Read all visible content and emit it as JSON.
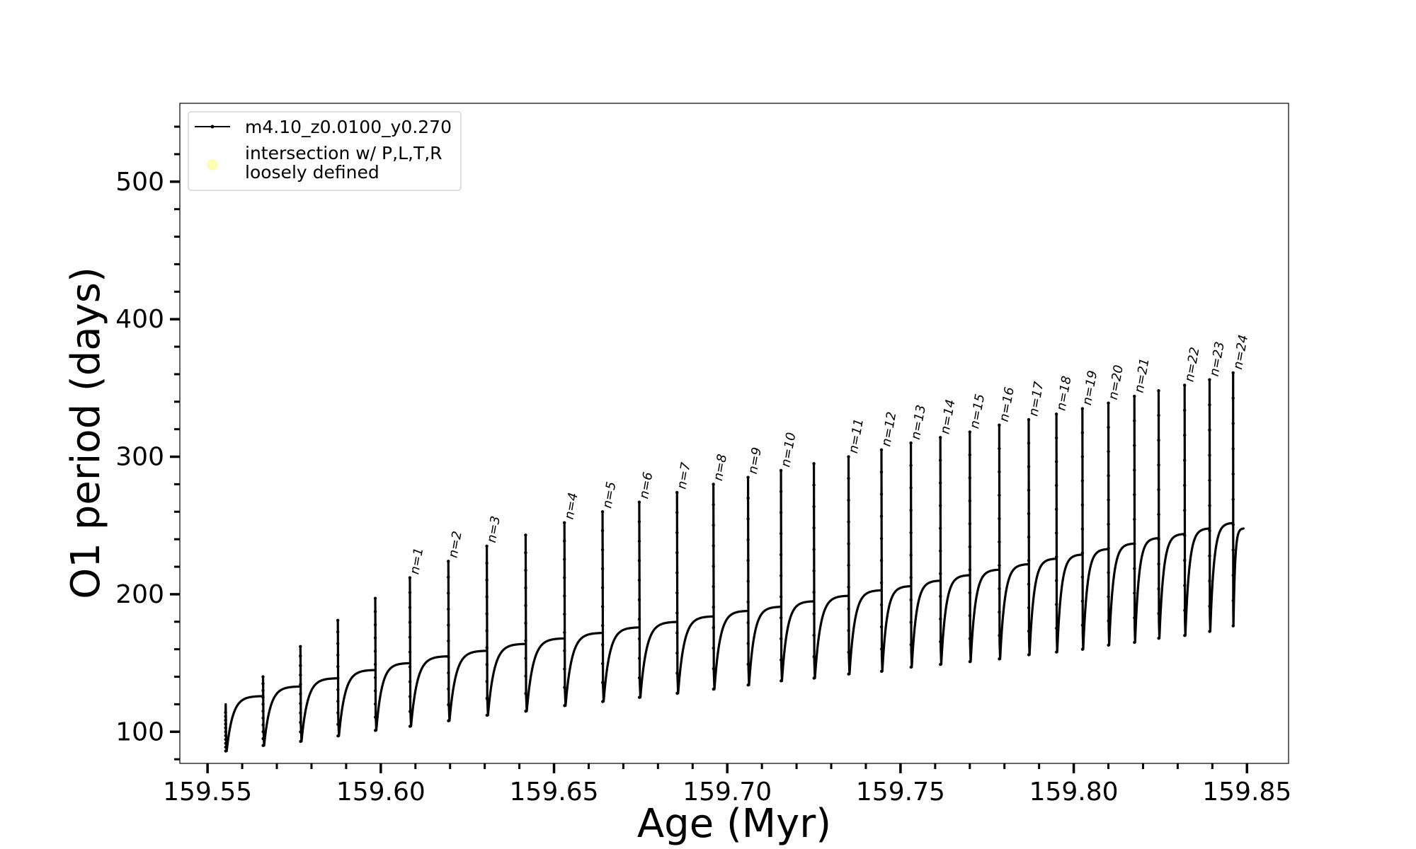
{
  "chart_data": {
    "type": "line",
    "title": "",
    "xlabel": "Age (Myr)",
    "ylabel": "O1 period (days)",
    "xlim": [
      159.542,
      159.862
    ],
    "ylim": [
      77,
      557
    ],
    "xticks": [
      159.55,
      159.6,
      159.65,
      159.7,
      159.75,
      159.8,
      159.85
    ],
    "xtick_labels": [
      "159.55",
      "159.60",
      "159.65",
      "159.70",
      "159.75",
      "159.80",
      "159.85"
    ],
    "yticks": [
      100,
      200,
      300,
      400,
      500
    ],
    "ytick_labels": [
      "100",
      "200",
      "300",
      "400",
      "500"
    ],
    "grid": false,
    "legend": {
      "placement": "top-left",
      "entries": [
        {
          "label": "m4.10_z0.0100_y0.270",
          "marker": "line-dot",
          "color": "#000000"
        },
        {
          "label_lines": [
            "intersection w/ P,L,T,R",
            "loosely defined"
          ],
          "marker": "circle",
          "color": "#ffffb0"
        }
      ]
    },
    "series": [
      {
        "name": "m4.10_z0.0100_y0.270",
        "color": "#000000",
        "cycles": [
          {
            "x_start": 159.5552,
            "x_end": 159.566,
            "spike": 114,
            "min": 86,
            "plateau": 126
          },
          {
            "x_start": 159.566,
            "x_end": 159.5768,
            "spike": 140,
            "min": 90,
            "plateau": 133
          },
          {
            "x_start": 159.5768,
            "x_end": 159.5876,
            "spike": 162,
            "min": 93,
            "plateau": 139
          },
          {
            "x_start": 159.5876,
            "x_end": 159.5984,
            "spike": 181,
            "min": 97,
            "plateau": 145
          },
          {
            "x_start": 159.5984,
            "x_end": 159.6084,
            "spike": 197,
            "min": 101,
            "plateau": 150
          },
          {
            "x_start": 159.6084,
            "x_end": 159.6195,
            "spike": 212,
            "min": 104,
            "plateau": 155,
            "label": "n=1"
          },
          {
            "x_start": 159.6195,
            "x_end": 159.6306,
            "spike": 224,
            "min": 108,
            "plateau": 159,
            "label": "n=2"
          },
          {
            "x_start": 159.6306,
            "x_end": 159.6418,
            "spike": 235,
            "min": 112,
            "plateau": 164,
            "label": "n=3"
          },
          {
            "x_start": 159.6418,
            "x_end": 159.653,
            "spike": 243,
            "min": 115,
            "plateau": 168
          },
          {
            "x_start": 159.653,
            "x_end": 159.664,
            "spike": 252,
            "min": 119,
            "plateau": 172,
            "label": "n=4"
          },
          {
            "x_start": 159.664,
            "x_end": 159.6746,
            "spike": 260,
            "min": 122,
            "plateau": 176,
            "label": "n=5"
          },
          {
            "x_start": 159.6746,
            "x_end": 159.6855,
            "spike": 267,
            "min": 125,
            "plateau": 180,
            "label": "n=6"
          },
          {
            "x_start": 159.6855,
            "x_end": 159.696,
            "spike": 274,
            "min": 128,
            "plateau": 184,
            "label": "n=7"
          },
          {
            "x_start": 159.696,
            "x_end": 159.706,
            "spike": 280,
            "min": 131,
            "plateau": 188,
            "label": "n=8"
          },
          {
            "x_start": 159.706,
            "x_end": 159.7155,
            "spike": 285,
            "min": 134,
            "plateau": 191,
            "label": "n=9"
          },
          {
            "x_start": 159.7155,
            "x_end": 159.725,
            "spike": 290,
            "min": 137,
            "plateau": 195,
            "label": "n=10"
          },
          {
            "x_start": 159.725,
            "x_end": 159.735,
            "spike": 295,
            "min": 139,
            "plateau": 199
          },
          {
            "x_start": 159.735,
            "x_end": 159.7445,
            "spike": 300,
            "min": 142,
            "plateau": 203,
            "label": "n=11"
          },
          {
            "x_start": 159.7445,
            "x_end": 159.753,
            "spike": 305,
            "min": 144,
            "plateau": 206,
            "label": "n=12"
          },
          {
            "x_start": 159.753,
            "x_end": 159.7615,
            "spike": 310,
            "min": 147,
            "plateau": 210,
            "label": "n=13"
          },
          {
            "x_start": 159.7615,
            "x_end": 159.77,
            "spike": 314,
            "min": 149,
            "plateau": 214,
            "label": "n=14"
          },
          {
            "x_start": 159.77,
            "x_end": 159.7785,
            "spike": 318,
            "min": 151,
            "plateau": 218,
            "label": "n=15"
          },
          {
            "x_start": 159.7785,
            "x_end": 159.787,
            "spike": 323,
            "min": 153,
            "plateau": 222,
            "label": "n=16"
          },
          {
            "x_start": 159.787,
            "x_end": 159.795,
            "spike": 327,
            "min": 156,
            "plateau": 226,
            "label": "n=17"
          },
          {
            "x_start": 159.795,
            "x_end": 159.8025,
            "spike": 331,
            "min": 158,
            "plateau": 229,
            "label": "n=18"
          },
          {
            "x_start": 159.8025,
            "x_end": 159.81,
            "spike": 335,
            "min": 160,
            "plateau": 233,
            "label": "n=19"
          },
          {
            "x_start": 159.81,
            "x_end": 159.8175,
            "spike": 339,
            "min": 163,
            "plateau": 237,
            "label": "n=20"
          },
          {
            "x_start": 159.8175,
            "x_end": 159.8245,
            "spike": 344,
            "min": 165,
            "plateau": 241,
            "label": "n=21"
          },
          {
            "x_start": 159.8245,
            "x_end": 159.832,
            "spike": 348,
            "min": 168,
            "plateau": 244
          },
          {
            "x_start": 159.832,
            "x_end": 159.8392,
            "spike": 352,
            "min": 170,
            "plateau": 248,
            "label": "n=22"
          },
          {
            "x_start": 159.8392,
            "x_end": 159.846,
            "spike": 356,
            "min": 173,
            "plateau": 252,
            "label": "n=23"
          },
          {
            "x_start": 159.846,
            "x_end": 159.849,
            "spike": 361,
            "min": 177,
            "plateau": 248,
            "label": "n=24"
          }
        ]
      }
    ]
  }
}
